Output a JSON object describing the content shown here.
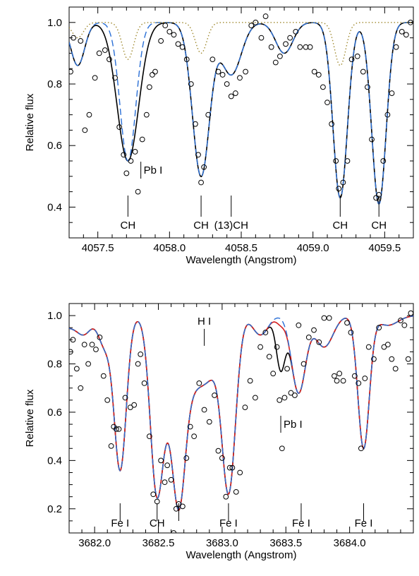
{
  "chart_data": [
    {
      "type": "line",
      "xlabel": "Wavelength (Angstrom)",
      "ylabel": "Relative flux",
      "xlim": [
        4057.3,
        4059.7
      ],
      "ylim": [
        0.3,
        1.05
      ],
      "xticks": [
        4057.5,
        4058.0,
        4058.5,
        4059.0,
        4059.5
      ],
      "xtick_labels": [
        "4057.5",
        "4058.0",
        "4058.5",
        "4059.0",
        "4059.5"
      ],
      "yticks": [
        0.4,
        0.6,
        0.8,
        1.0
      ],
      "ytick_labels": [
        "0.4",
        "0.6",
        "0.8",
        "1.0"
      ],
      "line_ids": [
        {
          "label": "CH",
          "x": 4057.71
        },
        {
          "label": "CH",
          "x": 4058.22
        },
        {
          "label": "(13)CH",
          "x": 4058.43
        },
        {
          "label": "CH",
          "x": 4059.19
        },
        {
          "label": "CH",
          "x": 4059.46
        }
      ],
      "annotations": [
        {
          "label": "Pb I",
          "x": 4057.8,
          "y": 0.52
        }
      ],
      "model_lines": [
        {
          "style": "solid",
          "color": "#000000",
          "lines": [
            [
              4057.36,
              0.14,
              0.048
            ],
            [
              4057.71,
              0.45,
              0.075
            ],
            [
              4058.22,
              0.5,
              0.06
            ],
            [
              4058.43,
              0.17,
              0.07
            ],
            [
              4058.8,
              0.1,
              0.06
            ],
            [
              4059.19,
              0.57,
              0.05
            ],
            [
              4059.46,
              0.59,
              0.05
            ]
          ]
        },
        {
          "style": "dashed",
          "color": "#2a6fd6",
          "lines": [
            [
              4057.36,
              0.14,
              0.048
            ],
            [
              4057.71,
              0.45,
              0.055
            ],
            [
              4058.22,
              0.5,
              0.06
            ],
            [
              4058.43,
              0.17,
              0.07
            ],
            [
              4058.8,
              0.1,
              0.06
            ],
            [
              4059.19,
              0.57,
              0.05
            ],
            [
              4059.46,
              0.59,
              0.05
            ]
          ]
        },
        {
          "style": "dotted",
          "color": "#a08a30",
          "lines": [
            [
              4057.36,
              0.05,
              0.04
            ],
            [
              4057.71,
              0.12,
              0.04
            ],
            [
              4058.22,
              0.1,
              0.04
            ],
            [
              4059.19,
              0.14,
              0.04
            ]
          ]
        }
      ],
      "observed": [
        [
          4057.31,
          0.84
        ],
        [
          4057.33,
          0.95
        ],
        [
          4057.38,
          0.94
        ],
        [
          4057.41,
          0.65
        ],
        [
          4057.44,
          0.7
        ],
        [
          4057.48,
          0.82
        ],
        [
          4057.51,
          0.9
        ],
        [
          4057.55,
          0.91
        ],
        [
          4057.58,
          0.88
        ],
        [
          4057.62,
          0.82
        ],
        [
          4057.65,
          0.66
        ],
        [
          4057.68,
          0.57
        ],
        [
          4057.7,
          0.51
        ],
        [
          4057.73,
          0.55
        ],
        [
          4057.76,
          0.58
        ],
        [
          4057.78,
          0.45
        ],
        [
          4057.81,
          0.62
        ],
        [
          4057.84,
          0.7
        ],
        [
          4057.86,
          0.79
        ],
        [
          4057.88,
          0.83
        ],
        [
          4057.9,
          0.84
        ],
        [
          4057.94,
          0.94
        ],
        [
          4057.97,
          0.99
        ],
        [
          4058.0,
          0.97
        ],
        [
          4058.03,
          0.96
        ],
        [
          4058.06,
          0.93
        ],
        [
          4058.09,
          0.92
        ],
        [
          4058.12,
          0.88
        ],
        [
          4058.15,
          0.8
        ],
        [
          4058.18,
          0.67
        ],
        [
          4058.2,
          0.57
        ],
        [
          4058.22,
          0.48
        ],
        [
          4058.24,
          0.53
        ],
        [
          4058.27,
          0.7
        ],
        [
          4058.3,
          0.88
        ],
        [
          4058.34,
          0.84
        ],
        [
          4058.37,
          0.83
        ],
        [
          4058.4,
          0.8
        ],
        [
          4058.43,
          0.76
        ],
        [
          4058.46,
          0.77
        ],
        [
          4058.49,
          0.82
        ],
        [
          4058.53,
          0.84
        ],
        [
          4058.57,
          0.99
        ],
        [
          4058.6,
          1.0
        ],
        [
          4058.64,
          0.95
        ],
        [
          4058.67,
          1.02
        ],
        [
          4058.71,
          0.92
        ],
        [
          4058.74,
          0.87
        ],
        [
          4058.77,
          0.89
        ],
        [
          4058.81,
          0.93
        ],
        [
          4058.84,
          0.95
        ],
        [
          4058.88,
          0.97
        ],
        [
          4058.91,
          0.92
        ],
        [
          4058.95,
          0.92
        ],
        [
          4058.98,
          0.92
        ],
        [
          4059.01,
          0.84
        ],
        [
          4059.04,
          0.83
        ],
        [
          4059.07,
          0.79
        ],
        [
          4059.1,
          0.74
        ],
        [
          4059.13,
          0.67
        ],
        [
          4059.16,
          0.55
        ],
        [
          4059.18,
          0.46
        ],
        [
          4059.21,
          0.48
        ],
        [
          4059.24,
          0.55
        ],
        [
          4059.27,
          0.88
        ],
        [
          4059.31,
          0.89
        ],
        [
          4059.35,
          0.84
        ],
        [
          4059.38,
          0.79
        ],
        [
          4059.41,
          0.62
        ],
        [
          4059.44,
          0.43
        ],
        [
          4059.46,
          0.44
        ],
        [
          4059.49,
          0.55
        ],
        [
          4059.52,
          0.7
        ],
        [
          4059.55,
          0.77
        ],
        [
          4059.58,
          0.92
        ],
        [
          4059.62,
          0.97
        ],
        [
          4059.65,
          0.96
        ],
        [
          4059.68,
          1.0
        ]
      ]
    },
    {
      "type": "line",
      "xlabel": "Wavelength (Angstrom)",
      "ylabel": "Relative flux",
      "xlim": [
        3681.8,
        3684.5
      ],
      "ylim": [
        0.1,
        1.05
      ],
      "xticks": [
        3682.0,
        3682.5,
        3683.0,
        3683.5,
        3684.0
      ],
      "xtick_labels": [
        "3682.0",
        "3682.5",
        "3683.0",
        "3683.5",
        "3684.0"
      ],
      "yticks": [
        0.2,
        0.4,
        0.6,
        0.8,
        1.0
      ],
      "ytick_labels": [
        "0.2",
        "0.4",
        "0.6",
        "0.8",
        "1.0"
      ],
      "line_ids": [
        {
          "label": "Fe I",
          "x": 3682.2
        },
        {
          "label": "CH",
          "x": 3682.49
        },
        {
          "label": "",
          "x": 3682.66
        },
        {
          "label": "Fe I",
          "x": 3683.05
        },
        {
          "label": "Fe I",
          "x": 3683.62
        },
        {
          "label": "Fe I",
          "x": 3684.11
        }
      ],
      "annotations": [
        {
          "label": "H I",
          "x": 3682.86,
          "y": 0.91
        },
        {
          "label": "Pb I",
          "x": 3683.46,
          "y": 0.55
        }
      ],
      "model_lines": [
        {
          "style": "solid",
          "color": "#000000",
          "lines": [
            [
              3681.8,
              0.05,
              0.12
            ],
            [
              3681.92,
              0.05,
              0.05
            ],
            [
              3682.08,
              0.12,
              0.05
            ],
            [
              3682.2,
              0.64,
              0.048
            ],
            [
              3682.49,
              0.7,
              0.05
            ],
            [
              3682.66,
              0.72,
              0.05
            ],
            [
              3682.58,
              0.3,
              0.09
            ],
            [
              3682.76,
              0.24,
              0.09
            ],
            [
              3682.9,
              0.2,
              0.08
            ],
            [
              3683.05,
              0.73,
              0.055
            ],
            [
              3683.3,
              0.08,
              0.06
            ],
            [
              3683.46,
              0.22,
              0.035
            ],
            [
              3683.6,
              0.32,
              0.055
            ],
            [
              3683.8,
              0.13,
              0.07
            ],
            [
              3684.11,
              0.55,
              0.045
            ],
            [
              3684.3,
              0.04,
              0.08
            ]
          ]
        },
        {
          "style": "solid",
          "color": "#d42020",
          "lines": [
            [
              3681.8,
              0.05,
              0.12
            ],
            [
              3681.92,
              0.05,
              0.05
            ],
            [
              3682.08,
              0.12,
              0.05
            ],
            [
              3682.2,
              0.64,
              0.048
            ],
            [
              3682.49,
              0.7,
              0.05
            ],
            [
              3682.66,
              0.72,
              0.05
            ],
            [
              3682.58,
              0.3,
              0.09
            ],
            [
              3682.76,
              0.24,
              0.09
            ],
            [
              3682.9,
              0.2,
              0.08
            ],
            [
              3683.05,
              0.73,
              0.055
            ],
            [
              3683.3,
              0.08,
              0.06
            ],
            [
              3683.46,
              0.03,
              0.035
            ],
            [
              3683.6,
              0.32,
              0.055
            ],
            [
              3683.8,
              0.13,
              0.07
            ],
            [
              3684.11,
              0.55,
              0.045
            ],
            [
              3684.3,
              0.04,
              0.08
            ]
          ]
        },
        {
          "style": "dashed",
          "color": "#2a6fd6",
          "lines": [
            [
              3681.8,
              0.05,
              0.12
            ],
            [
              3681.92,
              0.05,
              0.05
            ],
            [
              3682.08,
              0.12,
              0.05
            ],
            [
              3682.2,
              0.64,
              0.048
            ],
            [
              3682.49,
              0.7,
              0.05
            ],
            [
              3682.66,
              0.72,
              0.05
            ],
            [
              3682.58,
              0.3,
              0.09
            ],
            [
              3682.76,
              0.24,
              0.09
            ],
            [
              3682.9,
              0.2,
              0.08
            ],
            [
              3683.05,
              0.73,
              0.055
            ],
            [
              3683.3,
              0.08,
              0.06
            ],
            [
              3683.6,
              0.32,
              0.055
            ],
            [
              3683.8,
              0.13,
              0.07
            ],
            [
              3684.11,
              0.55,
              0.045
            ],
            [
              3684.3,
              0.04,
              0.08
            ]
          ]
        }
      ],
      "observed": [
        [
          3681.81,
          0.85
        ],
        [
          3681.83,
          0.9
        ],
        [
          3681.86,
          0.78
        ],
        [
          3681.89,
          0.7
        ],
        [
          3681.92,
          0.88
        ],
        [
          3681.95,
          0.8
        ],
        [
          3681.98,
          0.88
        ],
        [
          3682.01,
          0.86
        ],
        [
          3682.04,
          0.91
        ],
        [
          3682.07,
          0.75
        ],
        [
          3682.1,
          0.65
        ],
        [
          3682.13,
          0.46
        ],
        [
          3682.15,
          0.54
        ],
        [
          3682.17,
          0.53
        ],
        [
          3682.19,
          0.53
        ],
        [
          3682.24,
          0.66
        ],
        [
          3682.28,
          0.62
        ],
        [
          3682.31,
          0.63
        ],
        [
          3682.34,
          0.8
        ],
        [
          3682.36,
          0.84
        ],
        [
          3682.39,
          0.72
        ],
        [
          3682.43,
          0.5
        ],
        [
          3682.46,
          0.26
        ],
        [
          3682.49,
          0.23
        ],
        [
          3682.52,
          0.4
        ],
        [
          3682.55,
          0.31
        ],
        [
          3682.57,
          0.38
        ],
        [
          3682.6,
          0.32
        ],
        [
          3682.62,
          0.1
        ],
        [
          3682.64,
          0.2
        ],
        [
          3682.66,
          0.22
        ],
        [
          3682.69,
          0.21
        ],
        [
          3682.72,
          0.41
        ],
        [
          3682.75,
          0.54
        ],
        [
          3682.78,
          0.5
        ],
        [
          3682.82,
          0.72
        ],
        [
          3682.86,
          0.61
        ],
        [
          3682.9,
          0.56
        ],
        [
          3682.94,
          0.67
        ],
        [
          3682.97,
          0.44
        ],
        [
          3683.0,
          0.41
        ],
        [
          3683.03,
          0.25
        ],
        [
          3683.06,
          0.37
        ],
        [
          3683.08,
          0.37
        ],
        [
          3683.11,
          0.27
        ],
        [
          3683.14,
          0.35
        ],
        [
          3683.18,
          0.62
        ],
        [
          3683.22,
          0.73
        ],
        [
          3683.26,
          0.66
        ],
        [
          3683.3,
          0.87
        ],
        [
          3683.34,
          0.93
        ],
        [
          3683.37,
          0.83
        ],
        [
          3683.4,
          0.76
        ],
        [
          3683.43,
          0.87
        ],
        [
          3683.45,
          0.65
        ],
        [
          3683.47,
          0.45
        ],
        [
          3683.49,
          0.66
        ],
        [
          3683.51,
          0.78
        ],
        [
          3683.54,
          0.68
        ],
        [
          3683.57,
          0.67
        ],
        [
          3683.6,
          0.96
        ],
        [
          3683.64,
          0.8
        ],
        [
          3683.68,
          0.91
        ],
        [
          3683.72,
          0.94
        ],
        [
          3683.76,
          0.89
        ],
        [
          3683.8,
          0.99
        ],
        [
          3683.84,
          0.99
        ],
        [
          3683.88,
          0.75
        ],
        [
          3683.9,
          0.73
        ],
        [
          3683.92,
          0.76
        ],
        [
          3683.95,
          0.73
        ],
        [
          3683.98,
          0.97
        ],
        [
          3684.01,
          0.93
        ],
        [
          3684.04,
          0.75
        ],
        [
          3684.07,
          0.72
        ],
        [
          3684.09,
          0.45
        ],
        [
          3684.12,
          0.74
        ],
        [
          3684.15,
          0.87
        ],
        [
          3684.19,
          0.82
        ],
        [
          3684.23,
          0.95
        ],
        [
          3684.27,
          0.87
        ],
        [
          3684.3,
          0.88
        ],
        [
          3684.33,
          0.82
        ],
        [
          3684.36,
          0.78
        ],
        [
          3684.4,
          0.98
        ],
        [
          3684.43,
          0.96
        ],
        [
          3684.46,
          0.82
        ],
        [
          3684.48,
          1.01
        ]
      ]
    }
  ]
}
